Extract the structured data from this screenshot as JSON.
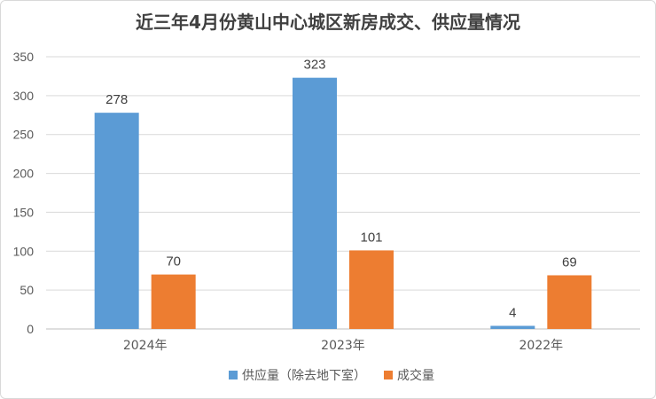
{
  "chart_data": {
    "type": "bar",
    "title": "近三年4月份黄山中心城区新房成交、供应量情况",
    "categories": [
      "2024年",
      "2023年",
      "2022年"
    ],
    "series": [
      {
        "name": "供应量（除去地下室）",
        "color": "#5b9bd5",
        "values": [
          278,
          323,
          4
        ]
      },
      {
        "name": "成交量",
        "color": "#ed7d31",
        "values": [
          70,
          101,
          69
        ]
      }
    ],
    "ylim": [
      0,
      350
    ],
    "yticks": [
      0,
      50,
      100,
      150,
      200,
      250,
      300,
      350
    ],
    "grid": true,
    "legend": "bottom"
  }
}
